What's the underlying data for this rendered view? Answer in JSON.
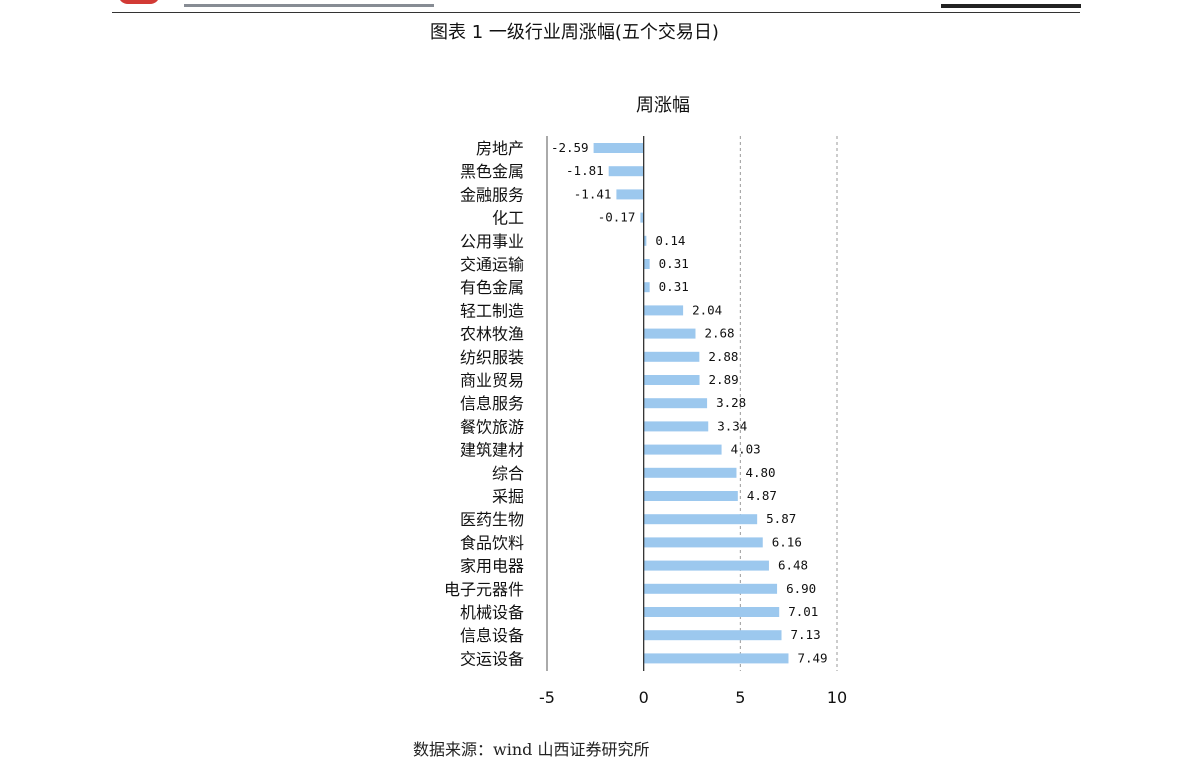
{
  "document": {
    "figure_title": "图表 1 一级行业周涨幅(五个交易日)",
    "source": "数据来源：wind 山西证券研究所"
  },
  "chart_data": {
    "type": "bar",
    "orientation": "horizontal",
    "title": "周涨幅",
    "xlabel": "",
    "ylabel": "",
    "xlim": [
      -5,
      10
    ],
    "x_ticks": [
      -5,
      0,
      5,
      10
    ],
    "grid": "vertical dashed at 5 and 10",
    "categories": [
      "房地产",
      "黑色金属",
      "金融服务",
      "化工",
      "公用事业",
      "交通运输",
      "有色金属",
      "轻工制造",
      "农林牧渔",
      "纺织服装",
      "商业贸易",
      "信息服务",
      "餐饮旅游",
      "建筑建材",
      "综合",
      "采掘",
      "医药生物",
      "食品饮料",
      "家用电器",
      "电子元器件",
      "机械设备",
      "信息设备",
      "交运设备"
    ],
    "values": [
      -2.59,
      -1.81,
      -1.41,
      -0.17,
      0.14,
      0.31,
      0.31,
      2.04,
      2.68,
      2.88,
      2.89,
      3.28,
      3.34,
      4.03,
      4.8,
      4.87,
      5.87,
      6.16,
      6.48,
      6.9,
      7.01,
      7.13,
      7.49
    ],
    "value_labels": [
      "-2.59",
      "-1.81",
      "-1.41",
      "-0.17",
      "0.14",
      "0.31",
      "0.31",
      "2.04",
      "2.68",
      "2.88",
      "2.89",
      "3.28",
      "3.34",
      "4.03",
      "4.80",
      "4.87",
      "5.87",
      "6.16",
      "6.48",
      "6.90",
      "7.01",
      "7.13",
      "7.49"
    ],
    "bar_color": "#9cc8ee",
    "axis_color": "#333333",
    "grid_color": "#9a9a9a"
  }
}
